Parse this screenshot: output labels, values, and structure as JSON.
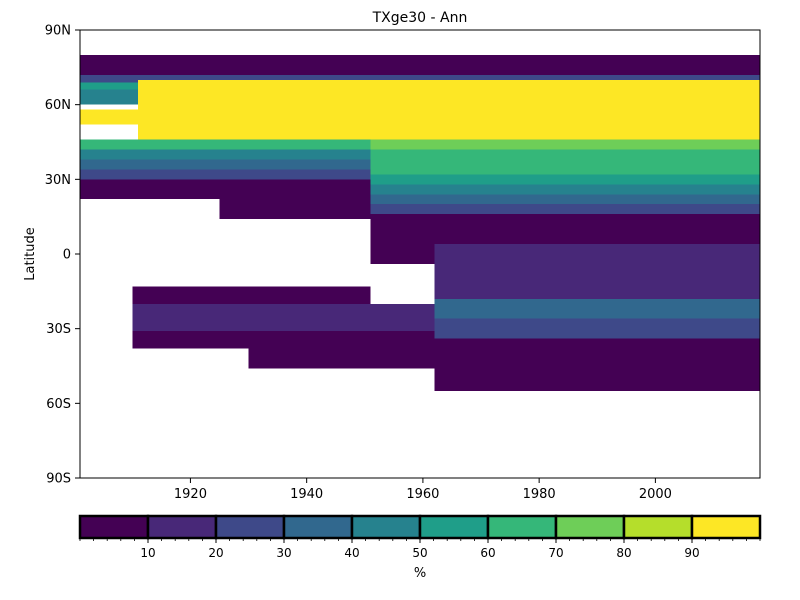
{
  "chart_data": {
    "type": "heatmap",
    "title": "TXge30 - Ann",
    "xlabel": "",
    "ylabel": "Latitude",
    "xlim": [
      1901,
      2018
    ],
    "ylim": [
      -90,
      90
    ],
    "x_ticks": [
      1920,
      1940,
      1960,
      1980,
      2000
    ],
    "x_tick_labels": [
      "1920",
      "1940",
      "1960",
      "1980",
      "2000"
    ],
    "y_ticks": [
      -90,
      -60,
      -30,
      0,
      30,
      60,
      90
    ],
    "y_tick_labels": [
      "90S",
      "60S",
      "30S",
      "0",
      "30N",
      "60N",
      "90N"
    ],
    "grid": false,
    "colorbar": {
      "label": "%",
      "range": [
        0,
        100
      ],
      "bounds": [
        0,
        10,
        20,
        30,
        40,
        50,
        60,
        70,
        80,
        90,
        100
      ],
      "tick_values": [
        10,
        20,
        30,
        40,
        50,
        60,
        70,
        80,
        90
      ],
      "tick_labels": [
        "10",
        "20",
        "30",
        "40",
        "50",
        "60",
        "70",
        "80",
        "90"
      ],
      "colors": [
        "#440154",
        "#482878",
        "#3e4989",
        "#31688e",
        "#26828e",
        "#1f9e89",
        "#35b779",
        "#6ece58",
        "#b5de2b",
        "#fde725"
      ]
    },
    "regions": [
      {
        "years": [
          1901,
          2018
        ],
        "lat": [
          72,
          80
        ],
        "value": 5
      },
      {
        "years": [
          1901,
          2018
        ],
        "lat": [
          69,
          72
        ],
        "value": 25
      },
      {
        "years": [
          1901,
          2018
        ],
        "lat": [
          66,
          69
        ],
        "value": 55
      },
      {
        "years": [
          1901,
          1911
        ],
        "lat": [
          60,
          66
        ],
        "value": 45
      },
      {
        "years": [
          1911,
          2018
        ],
        "lat": [
          46,
          70
        ],
        "value": 95
      },
      {
        "years": [
          1901,
          1911
        ],
        "lat": [
          52,
          58
        ],
        "value": 95
      },
      {
        "years": [
          1901,
          1951
        ],
        "lat": [
          42,
          46
        ],
        "value": 65
      },
      {
        "years": [
          1901,
          1951
        ],
        "lat": [
          38,
          42
        ],
        "value": 45
      },
      {
        "years": [
          1901,
          1951
        ],
        "lat": [
          34,
          38
        ],
        "value": 35
      },
      {
        "years": [
          1901,
          1951
        ],
        "lat": [
          30,
          34
        ],
        "value": 25
      },
      {
        "years": [
          1901,
          1951
        ],
        "lat": [
          22,
          30
        ],
        "value": 5
      },
      {
        "years": [
          1925,
          1951
        ],
        "lat": [
          14,
          22
        ],
        "value": 5
      },
      {
        "years": [
          1951,
          2018
        ],
        "lat": [
          42,
          46
        ],
        "value": 75
      },
      {
        "years": [
          1951,
          2018
        ],
        "lat": [
          32,
          42
        ],
        "value": 65
      },
      {
        "years": [
          1951,
          2018
        ],
        "lat": [
          28,
          32
        ],
        "value": 55
      },
      {
        "years": [
          1951,
          2018
        ],
        "lat": [
          24,
          28
        ],
        "value": 45
      },
      {
        "years": [
          1951,
          2018
        ],
        "lat": [
          20,
          24
        ],
        "value": 35
      },
      {
        "years": [
          1951,
          2018
        ],
        "lat": [
          16,
          20
        ],
        "value": 25
      },
      {
        "years": [
          1951,
          2018
        ],
        "lat": [
          4,
          16
        ],
        "value": 5
      },
      {
        "years": [
          1951,
          1962
        ],
        "lat": [
          -4,
          4
        ],
        "value": 5
      },
      {
        "years": [
          1962,
          2018
        ],
        "lat": [
          -22,
          4
        ],
        "value": 15
      },
      {
        "years": [
          1910,
          1951
        ],
        "lat": [
          -20,
          -13
        ],
        "value": 5
      },
      {
        "years": [
          1910,
          1962
        ],
        "lat": [
          -31,
          -20
        ],
        "value": 15
      },
      {
        "years": [
          1910,
          1962
        ],
        "lat": [
          -38,
          -31
        ],
        "value": 5
      },
      {
        "years": [
          1930,
          1962
        ],
        "lat": [
          -46,
          -38
        ],
        "value": 5
      },
      {
        "years": [
          1962,
          2018
        ],
        "lat": [
          -26,
          -18
        ],
        "value": 35
      },
      {
        "years": [
          1962,
          2018
        ],
        "lat": [
          -34,
          -26
        ],
        "value": 25
      },
      {
        "years": [
          1962,
          2018
        ],
        "lat": [
          -55,
          -34
        ],
        "value": 5
      }
    ]
  }
}
